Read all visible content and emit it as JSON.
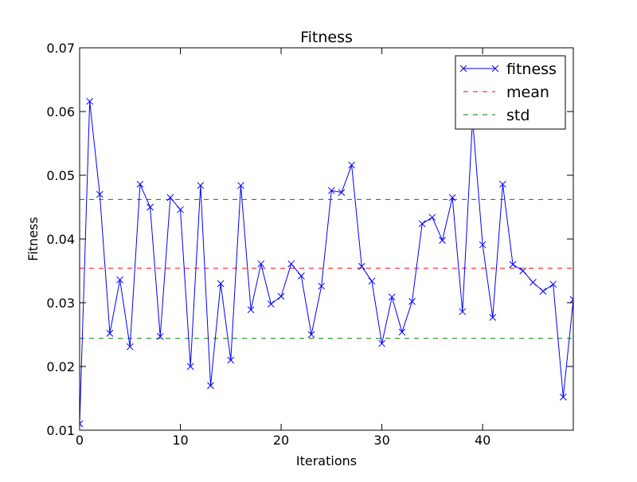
{
  "chart_data": {
    "type": "line",
    "title": "Fitness",
    "xlabel": "Iterations",
    "ylabel": "Fitness",
    "xlim": [
      0,
      49
    ],
    "ylim": [
      0.01,
      0.07
    ],
    "xticks": [
      0,
      10,
      20,
      30,
      40
    ],
    "yticks": [
      0.01,
      0.02,
      0.03,
      0.04,
      0.05,
      0.06,
      0.07
    ],
    "xtick_labels": [
      "0",
      "10",
      "20",
      "30",
      "40"
    ],
    "ytick_labels": [
      "0.01",
      "0.02",
      "0.03",
      "0.04",
      "0.05",
      "0.06",
      "0.07"
    ],
    "grid": false,
    "legend_position": "top-right",
    "series": [
      {
        "name": "fitness",
        "color": "#0000ff",
        "style": "solid",
        "marker": "x",
        "x": [
          0,
          1,
          2,
          3,
          4,
          5,
          6,
          7,
          8,
          9,
          10,
          11,
          12,
          13,
          14,
          15,
          16,
          17,
          18,
          19,
          20,
          21,
          22,
          23,
          24,
          25,
          26,
          27,
          28,
          29,
          30,
          31,
          32,
          33,
          34,
          35,
          36,
          37,
          38,
          39,
          40,
          41,
          42,
          43,
          44,
          45,
          46,
          47,
          48,
          49
        ],
        "values": [
          0.011,
          0.0616,
          0.047,
          0.0252,
          0.0336,
          0.0231,
          0.0486,
          0.045,
          0.0247,
          0.0465,
          0.0446,
          0.02,
          0.0484,
          0.017,
          0.033,
          0.021,
          0.0484,
          0.0289,
          0.0361,
          0.0298,
          0.031,
          0.0361,
          0.0342,
          0.025,
          0.0326,
          0.0476,
          0.0473,
          0.0516,
          0.0357,
          0.0334,
          0.0236,
          0.0309,
          0.0254,
          0.0302,
          0.0424,
          0.0434,
          0.0398,
          0.0465,
          0.0286,
          0.0588,
          0.0391,
          0.0277,
          0.0486,
          0.036,
          0.035,
          0.0332,
          0.0318,
          0.0329,
          0.0152,
          0.0305
        ]
      },
      {
        "name": "mean",
        "color": "#ff0000",
        "style": "dashed",
        "values": [
          0.0354
        ]
      },
      {
        "name": "std",
        "color": "#008000",
        "style": "dashed",
        "values": [
          0.0462,
          0.0244
        ]
      }
    ]
  }
}
